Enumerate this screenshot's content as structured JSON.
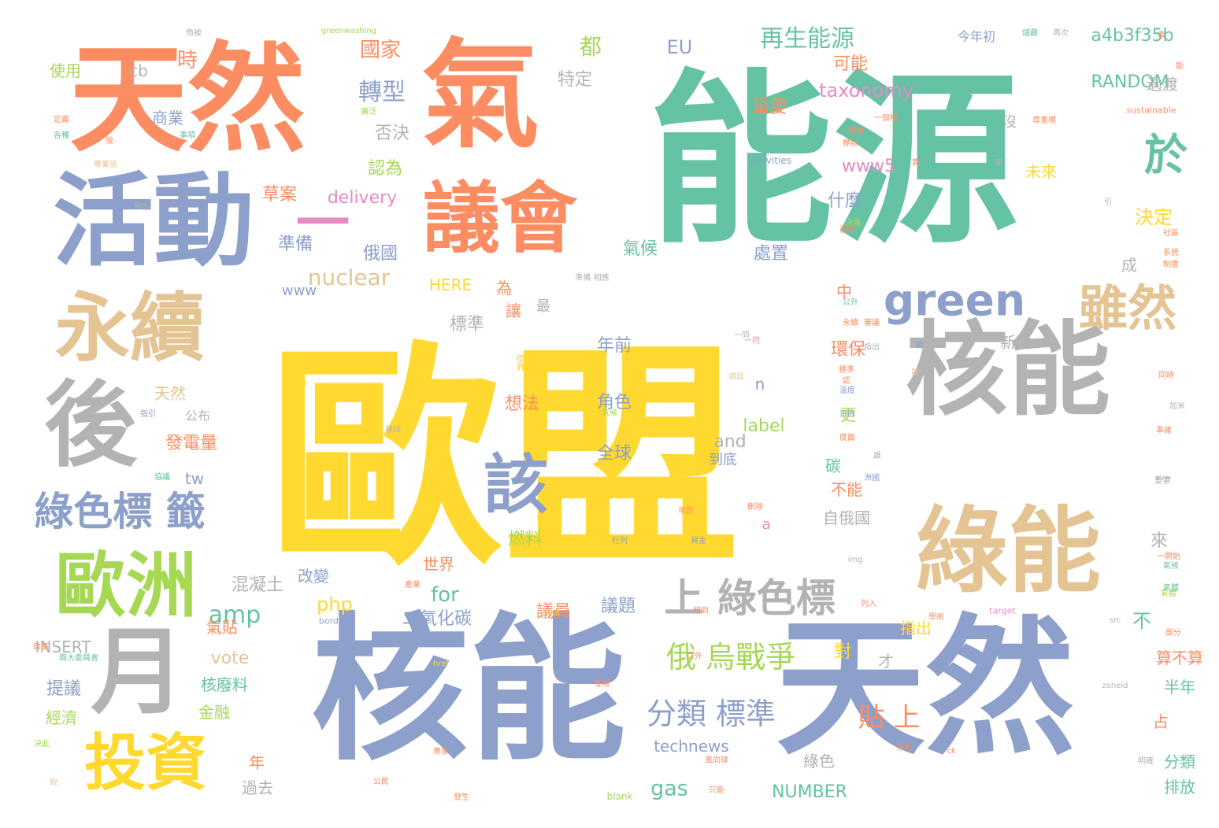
{
  "palette": {
    "yellow": "#ffd92f",
    "teal": "#66c2a5",
    "orange": "#fc8d62",
    "blue": "#8da0cb",
    "gray": "#b3b3b3",
    "tan": "#e5c494",
    "green": "#a6d854",
    "pink": "#e78ac3"
  },
  "words": [
    {
      "text": "歐盟",
      "color": "yellow"
    },
    {
      "text": "能源",
      "color": "teal"
    },
    {
      "text": "核能",
      "color": "blue"
    },
    {
      "text": "天然",
      "color": "blue"
    },
    {
      "text": "天然",
      "color": "orange"
    },
    {
      "text": "氣",
      "color": "orange"
    },
    {
      "text": "活動",
      "color": "blue"
    },
    {
      "text": "核能",
      "color": "gray"
    },
    {
      "text": "綠能",
      "color": "tan"
    },
    {
      "text": "後",
      "color": "gray"
    },
    {
      "text": "永續",
      "color": "tan"
    },
    {
      "text": "月",
      "color": "gray"
    },
    {
      "text": "議會",
      "color": "orange"
    },
    {
      "text": "一",
      "color": "pink"
    },
    {
      "text": "歐洲",
      "color": "green"
    },
    {
      "text": "投資",
      "color": "yellow"
    },
    {
      "text": "該",
      "color": "blue"
    },
    {
      "text": "green",
      "color": "blue"
    },
    {
      "text": "雖然",
      "color": "tan"
    },
    {
      "text": "於",
      "color": "teal"
    },
    {
      "text": "綠色標 籤",
      "color": "blue"
    },
    {
      "text": "上 綠色標",
      "color": "gray"
    },
    {
      "text": "再生能源",
      "color": "teal"
    },
    {
      "text": "俄 烏戰爭",
      "color": "green"
    },
    {
      "text": "分類 標準",
      "color": "blue"
    },
    {
      "text": "轉型",
      "color": "blue"
    },
    {
      "text": "nuclear",
      "color": "tan"
    },
    {
      "text": "貼 上",
      "color": "orange"
    },
    {
      "text": "taxonomy",
      "color": "pink"
    },
    {
      "text": "RANDOM",
      "color": "teal"
    },
    {
      "text": "a4b3f35b",
      "color": "teal"
    },
    {
      "text": "delivery",
      "color": "pink"
    },
    {
      "text": "amp",
      "color": "teal"
    },
    {
      "text": "technews",
      "color": "blue"
    },
    {
      "text": "NUMBER",
      "color": "teal"
    },
    {
      "text": "INSERT",
      "color": "gray"
    },
    {
      "text": "gas",
      "color": "teal"
    },
    {
      "text": "for",
      "color": "teal"
    },
    {
      "text": "vote",
      "color": "tan"
    },
    {
      "text": "php",
      "color": "yellow"
    },
    {
      "text": "label",
      "color": "green"
    },
    {
      "text": "www5",
      "color": "pink"
    },
    {
      "text": "www",
      "color": "blue"
    },
    {
      "text": "HERE",
      "color": "yellow"
    },
    {
      "text": "and",
      "color": "gray"
    },
    {
      "text": "tw",
      "color": "blue"
    },
    {
      "text": "cb",
      "color": "gray"
    },
    {
      "text": "EU",
      "color": "blue"
    },
    {
      "text": "國家",
      "color": "orange"
    },
    {
      "text": "商業",
      "color": "blue"
    },
    {
      "text": "使用",
      "color": "green"
    },
    {
      "text": "時",
      "color": "orange"
    },
    {
      "text": "都",
      "color": "green"
    },
    {
      "text": "特定",
      "color": "gray"
    },
    {
      "text": "否決",
      "color": "gray"
    },
    {
      "text": "認為",
      "color": "green"
    },
    {
      "text": "草案",
      "color": "orange"
    },
    {
      "text": "可能",
      "color": "orange"
    },
    {
      "text": "重要",
      "color": "orange"
    },
    {
      "text": "什麼",
      "color": "blue"
    },
    {
      "text": "處置",
      "color": "blue"
    },
    {
      "text": "氣候",
      "color": "teal"
    },
    {
      "text": "準備",
      "color": "blue"
    },
    {
      "text": "俄國",
      "color": "blue"
    },
    {
      "text": "決定",
      "color": "yellow"
    },
    {
      "text": "標準",
      "color": "gray"
    },
    {
      "text": "年前",
      "color": "blue"
    },
    {
      "text": "角色",
      "color": "blue"
    },
    {
      "text": "全球",
      "color": "blue"
    },
    {
      "text": "需要",
      "color": "yellow"
    },
    {
      "text": "環保",
      "color": "orange"
    },
    {
      "text": "想法",
      "color": "orange"
    },
    {
      "text": "天然",
      "color": "tan"
    },
    {
      "text": "發電量",
      "color": "orange"
    },
    {
      "text": "公布",
      "color": "gray"
    },
    {
      "text": "燃料",
      "color": "green"
    },
    {
      "text": "世界",
      "color": "orange"
    },
    {
      "text": "混凝土",
      "color": "gray"
    },
    {
      "text": "改變",
      "color": "blue"
    },
    {
      "text": "議員",
      "color": "orange"
    },
    {
      "text": "議題",
      "color": "blue"
    },
    {
      "text": "二氧化碳",
      "color": "blue"
    },
    {
      "text": "氣貼",
      "color": "orange"
    },
    {
      "text": "提議",
      "color": "blue"
    },
    {
      "text": "核廢料",
      "color": "teal"
    },
    {
      "text": "經濟",
      "color": "green"
    },
    {
      "text": "金融",
      "color": "green"
    },
    {
      "text": "年",
      "color": "orange"
    },
    {
      "text": "過去",
      "color": "gray"
    },
    {
      "text": "綠色",
      "color": "gray"
    },
    {
      "text": "分類",
      "color": "teal"
    },
    {
      "text": "排放",
      "color": "teal"
    },
    {
      "text": "半年",
      "color": "teal"
    },
    {
      "text": "算不算",
      "color": "orange"
    },
    {
      "text": "指出",
      "color": "yellow"
    },
    {
      "text": "不",
      "color": "teal"
    },
    {
      "text": "對",
      "color": "yellow"
    },
    {
      "text": "才",
      "color": "gray"
    },
    {
      "text": "占",
      "color": "orange"
    },
    {
      "text": "自俄國",
      "color": "gray"
    },
    {
      "text": "不能",
      "color": "orange"
    },
    {
      "text": "新建",
      "color": "gray"
    },
    {
      "text": "過渡",
      "color": "gray"
    },
    {
      "text": "未來",
      "color": "yellow"
    },
    {
      "text": "今年初",
      "color": "blue"
    },
    {
      "text": "更",
      "color": "green"
    },
    {
      "text": "n",
      "color": "blue"
    },
    {
      "text": "a",
      "color": "pink"
    },
    {
      "text": "為",
      "color": "orange"
    },
    {
      "text": "讓",
      "color": "orange"
    },
    {
      "text": "最",
      "color": "gray"
    },
    {
      "text": "中",
      "color": "orange"
    },
    {
      "text": "到底",
      "color": "blue"
    },
    {
      "text": "碳",
      "color": "teal"
    },
    {
      "text": "沒",
      "color": "gray"
    },
    {
      "text": "成",
      "color": "gray"
    },
    {
      "text": "來",
      "color": "gray"
    },
    {
      "text": "greenwashing",
      "color": "green"
    },
    {
      "text": "activities",
      "color": "blue"
    },
    {
      "text": "sustainable",
      "color": "orange"
    },
    {
      "text": "target",
      "color": "pink"
    },
    {
      "text": "border",
      "color": "blue"
    },
    {
      "text": "alt",
      "color": "yellow"
    },
    {
      "text": "href",
      "color": "yellow"
    },
    {
      "text": "src",
      "color": "gray"
    },
    {
      "text": "zoneid",
      "color": "gray"
    },
    {
      "text": "blank",
      "color": "green"
    },
    {
      "text": "ck",
      "color": "orange"
    },
    {
      "text": "img",
      "color": "gray"
    },
    {
      "text": "avw",
      "color": "gray"
    },
    {
      "text": "角被",
      "color": "gray"
    },
    {
      "text": "再次",
      "color": "gray"
    },
    {
      "text": "儲藏",
      "color": "teal"
    },
    {
      "text": "定義",
      "color": "orange"
    },
    {
      "text": "各種",
      "color": "teal"
    },
    {
      "text": "做",
      "color": "orange"
    },
    {
      "text": "事項",
      "color": "teal"
    },
    {
      "text": "廣泛",
      "color": "green"
    },
    {
      "text": "專業值",
      "color": "tan"
    },
    {
      "text": "用水",
      "color": "gray"
    },
    {
      "text": "公升",
      "color": "teal"
    },
    {
      "text": "一同",
      "color": "gray"
    },
    {
      "text": "項目",
      "color": "tan"
    },
    {
      "text": "出具",
      "color": "yellow"
    },
    {
      "text": "指引",
      "color": "blue"
    },
    {
      "text": "協議",
      "color": "teal"
    },
    {
      "text": "領域",
      "color": "gray"
    },
    {
      "text": "年的",
      "color": "orange"
    },
    {
      "text": "刪除",
      "color": "orange"
    },
    {
      "text": "行列",
      "color": "blue"
    },
    {
      "text": "資金",
      "color": "blue"
    },
    {
      "text": "政策",
      "color": "orange"
    },
    {
      "text": "兩大委員會",
      "color": "teal"
    },
    {
      "text": "產業",
      "color": "orange"
    },
    {
      "text": "想到",
      "color": "orange"
    },
    {
      "text": "列入",
      "color": "orange"
    },
    {
      "text": "學術",
      "color": "orange"
    },
    {
      "text": "部分",
      "color": "orange"
    },
    {
      "text": "之外",
      "color": "orange"
    },
    {
      "text": "每噸",
      "color": "orange"
    },
    {
      "text": "專家",
      "color": "orange"
    },
    {
      "text": "公民",
      "color": "orange"
    },
    {
      "text": "發生",
      "color": "orange"
    },
    {
      "text": "淨化",
      "color": "orange"
    },
    {
      "text": "風向球",
      "color": "orange"
    },
    {
      "text": "只能",
      "color": "orange"
    },
    {
      "text": "決此",
      "color": "green"
    },
    {
      "text": "銳",
      "color": "tan"
    },
    {
      "text": "明確",
      "color": "gray"
    },
    {
      "text": "社區",
      "color": "orange"
    },
    {
      "text": "系統",
      "color": "orange"
    },
    {
      "text": "制度",
      "color": "orange"
    },
    {
      "text": "同時",
      "color": "orange"
    },
    {
      "text": "氣體",
      "color": "teal"
    },
    {
      "text": "氣候",
      "color": "teal"
    },
    {
      "text": "一開始",
      "color": "orange"
    },
    {
      "text": "準備 相應",
      "color": "gray"
    },
    {
      "text": "永續",
      "color": "orange"
    },
    {
      "text": "決議",
      "color": "green"
    },
    {
      "text": "一同",
      "color": "pink"
    },
    {
      "text": "標誌",
      "color": "orange"
    },
    {
      "text": "一個標",
      "color": "orange"
    },
    {
      "text": "尊重標",
      "color": "orange"
    },
    {
      "text": "混凝",
      "color": "orange"
    },
    {
      "text": "標準",
      "color": "orange"
    },
    {
      "text": "認",
      "color": "orange"
    },
    {
      "text": "算",
      "color": "orange"
    },
    {
      "text": "噸",
      "color": "gray"
    },
    {
      "text": "能",
      "color": "orange"
    },
    {
      "text": "事",
      "color": "orange"
    },
    {
      "text": "能",
      "color": "tan"
    },
    {
      "text": "歐",
      "color": "blue"
    },
    {
      "text": "誰",
      "color": "gray"
    },
    {
      "text": "洲國",
      "color": "blue"
    },
    {
      "text": "日的",
      "color": "blue"
    },
    {
      "text": "度面",
      "color": "orange"
    },
    {
      "text": "溫度",
      "color": "blue"
    },
    {
      "text": "審議",
      "color": "orange"
    },
    {
      "text": "指出",
      "color": "gray"
    },
    {
      "text": "準確",
      "color": "orange"
    },
    {
      "text": "加米",
      "color": "gray"
    },
    {
      "text": "重事",
      "color": "gray"
    },
    {
      "text": "引",
      "color": "gray"
    },
    {
      "text": "一開始",
      "color": "orange"
    },
    {
      "text": "氣體",
      "color": "green"
    },
    {
      "text": "氣候",
      "color": "green"
    }
  ]
}
